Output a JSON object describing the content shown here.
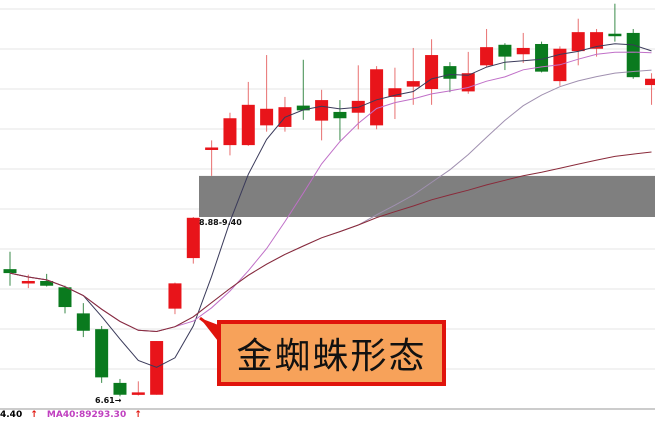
{
  "chart_data": {
    "type": "candlestick",
    "title": "",
    "xlabel": "",
    "ylabel": "",
    "ylim": [
      6.3,
      11.62
    ],
    "grid": true,
    "colors": {
      "up": "#e8141a",
      "down": "#0a7a1e",
      "ma5": "#3a3a5a",
      "ma10": "#c070c8",
      "ma20": "#a090b0",
      "ma40": "#8a2a3a",
      "gap_band": "#7f7f7f",
      "callout_fill": "#f7a25a",
      "callout_border": "#e0140c"
    },
    "candles": [
      {
        "o": 8.22,
        "h": 8.44,
        "l": 8.01,
        "c": 8.17
      },
      {
        "o": 8.06,
        "h": 8.15,
        "l": 7.98,
        "c": 8.07
      },
      {
        "o": 8.07,
        "h": 8.16,
        "l": 8.0,
        "c": 8.01
      },
      {
        "o": 7.99,
        "h": 8.01,
        "l": 7.66,
        "c": 7.74
      },
      {
        "o": 7.66,
        "h": 7.79,
        "l": 7.36,
        "c": 7.44
      },
      {
        "o": 7.46,
        "h": 7.5,
        "l": 6.78,
        "c": 6.85
      },
      {
        "o": 6.78,
        "h": 6.83,
        "l": 6.61,
        "c": 6.63
      },
      {
        "o": 6.63,
        "h": 6.8,
        "l": 6.62,
        "c": 6.66
      },
      {
        "o": 6.63,
        "h": 7.31,
        "l": 6.63,
        "c": 7.31
      },
      {
        "o": 7.72,
        "h": 8.05,
        "l": 7.65,
        "c": 8.04
      },
      {
        "o": 8.36,
        "h": 8.88,
        "l": 8.29,
        "c": 8.87
      },
      {
        "o": 9.74,
        "h": 9.85,
        "l": 9.4,
        "c": 9.76
      },
      {
        "o": 9.79,
        "h": 10.2,
        "l": 9.66,
        "c": 10.13
      },
      {
        "o": 9.79,
        "h": 10.59,
        "l": 9.78,
        "c": 10.3
      },
      {
        "o": 10.04,
        "h": 10.93,
        "l": 9.96,
        "c": 10.25
      },
      {
        "o": 10.02,
        "h": 10.4,
        "l": 9.96,
        "c": 10.27
      },
      {
        "o": 10.29,
        "h": 10.87,
        "l": 10.11,
        "c": 10.23
      },
      {
        "o": 10.1,
        "h": 10.49,
        "l": 9.85,
        "c": 10.36
      },
      {
        "o": 10.21,
        "h": 10.36,
        "l": 9.85,
        "c": 10.13
      },
      {
        "o": 10.2,
        "h": 10.8,
        "l": 9.99,
        "c": 10.35
      },
      {
        "o": 10.04,
        "h": 10.79,
        "l": 9.99,
        "c": 10.75
      },
      {
        "o": 10.4,
        "h": 10.77,
        "l": 10.12,
        "c": 10.51
      },
      {
        "o": 10.53,
        "h": 11.02,
        "l": 10.3,
        "c": 10.6
      },
      {
        "o": 10.5,
        "h": 11.13,
        "l": 10.3,
        "c": 10.93
      },
      {
        "o": 10.79,
        "h": 10.84,
        "l": 10.46,
        "c": 10.63
      },
      {
        "o": 10.47,
        "h": 10.97,
        "l": 10.44,
        "c": 10.7
      },
      {
        "o": 10.8,
        "h": 11.26,
        "l": 10.78,
        "c": 11.03
      },
      {
        "o": 11.06,
        "h": 11.08,
        "l": 10.74,
        "c": 10.91
      },
      {
        "o": 10.94,
        "h": 11.21,
        "l": 10.83,
        "c": 11.02
      },
      {
        "o": 11.07,
        "h": 11.1,
        "l": 10.71,
        "c": 10.72
      },
      {
        "o": 10.6,
        "h": 11.04,
        "l": 10.54,
        "c": 11.01
      },
      {
        "o": 10.98,
        "h": 11.39,
        "l": 10.8,
        "c": 11.22
      },
      {
        "o": 11.01,
        "h": 11.26,
        "l": 10.91,
        "c": 11.22
      },
      {
        "o": 11.2,
        "h": 11.58,
        "l": 11.1,
        "c": 11.19
      },
      {
        "o": 11.21,
        "h": 11.26,
        "l": 10.63,
        "c": 10.65
      },
      {
        "o": 10.55,
        "h": 10.7,
        "l": 10.3,
        "c": 10.63
      }
    ],
    "moving_averages": [
      5,
      10,
      20,
      40
    ],
    "gap": {
      "low": 8.88,
      "high": 9.4,
      "label": "8.88-9.40"
    },
    "low_marker": {
      "value": 6.61,
      "label": "6.61→"
    },
    "annotation": "金蜘蛛形态",
    "legend": [
      {
        "text": "4.40",
        "arrow": "↑",
        "color": "#111111"
      },
      {
        "text": "MA40:89293.30",
        "arrow": "↑",
        "color": "#c040c0"
      }
    ]
  }
}
